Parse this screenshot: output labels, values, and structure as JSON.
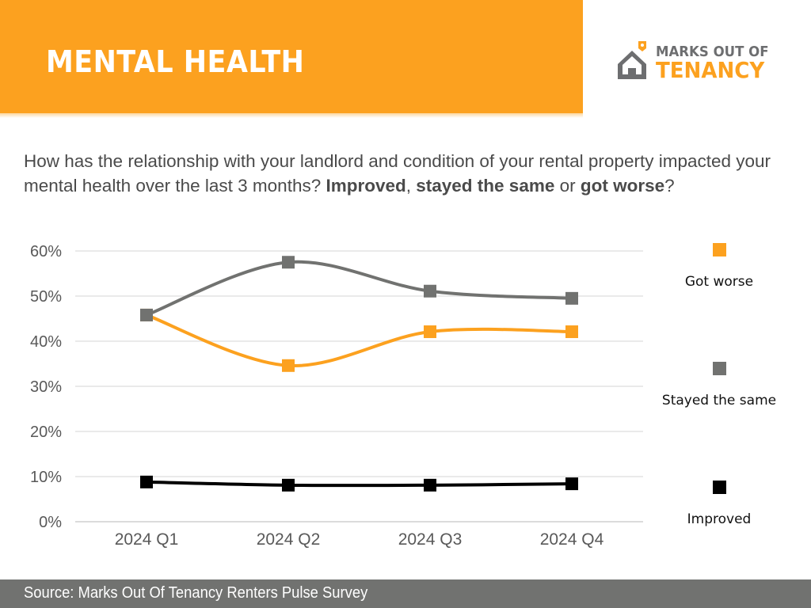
{
  "header": {
    "title": "MENTAL HEALTH",
    "brand_color": "#FCA11F"
  },
  "logo": {
    "icon": "house-icon",
    "line1": "MARKS OUT OF",
    "line2": "TENANCY"
  },
  "question": {
    "intro": "How has the relationship with your landlord and condition of your rental property impacted your mental health over the last 3 months? ",
    "opt1": "Improved",
    "sep1": ", ",
    "opt2": "stayed the same",
    "sep2": " or ",
    "opt3": "got worse",
    "end": "?"
  },
  "chart_data": {
    "type": "line",
    "title": "",
    "xlabel": "",
    "ylabel": "",
    "categories": [
      "2024 Q1",
      "2024 Q2",
      "2024 Q3",
      "2024 Q4"
    ],
    "ylim": [
      0,
      60
    ],
    "yticks": [
      0,
      10,
      20,
      30,
      40,
      50,
      60
    ],
    "ytick_labels": [
      "0%",
      "10%",
      "20%",
      "30%",
      "40%",
      "50%",
      "60%"
    ],
    "grid": true,
    "smooth": true,
    "legend_position": "right",
    "series": [
      {
        "name": "Got worse",
        "color": "#FCA11F",
        "values": [
          45.8,
          34.6,
          42.1,
          42.1
        ]
      },
      {
        "name": "Stayed the same",
        "color": "#717270",
        "values": [
          45.8,
          57.5,
          51.1,
          49.5
        ]
      },
      {
        "name": "Improved",
        "color": "#000000",
        "values": [
          8.8,
          8.1,
          8.1,
          8.4
        ]
      }
    ]
  },
  "footer": {
    "source": "Source: Marks Out Of Tenancy Renters Pulse Survey"
  }
}
